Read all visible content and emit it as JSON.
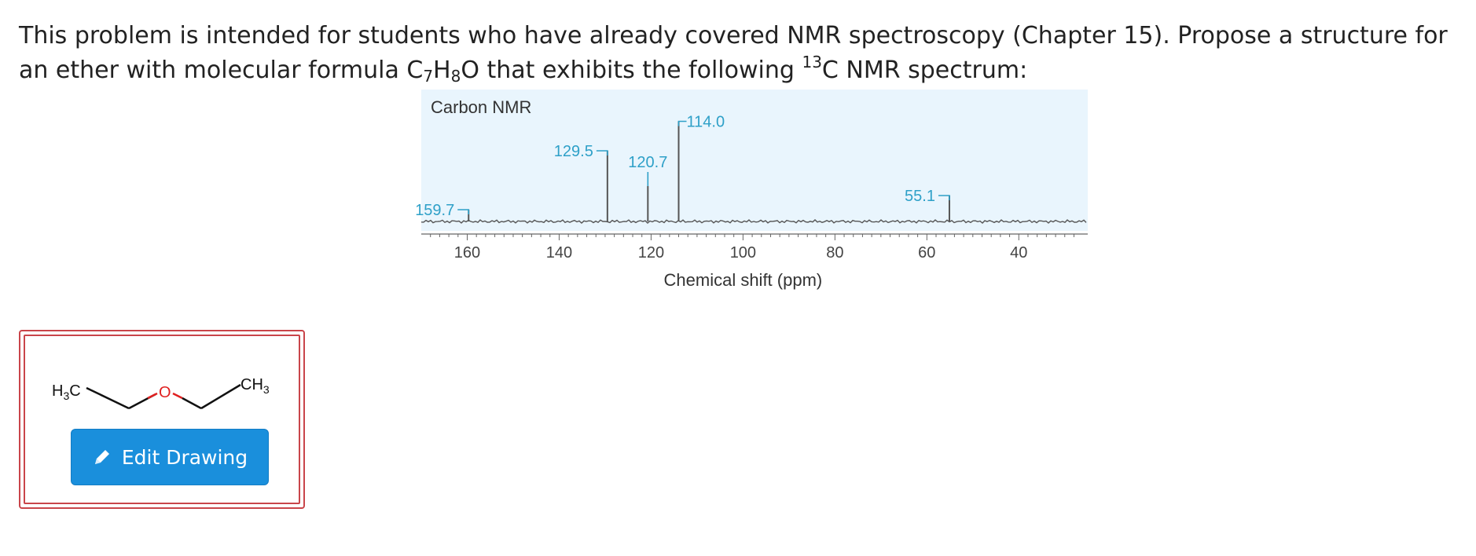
{
  "question": {
    "text_before": "This problem is intended for students who have already covered NMR spectroscopy (Chapter 15). Propose a structure for an ether with molecular formula C",
    "sub_c": "7",
    "h": "H",
    "sub_h": "8",
    "o": "O that exhibits the following ",
    "isotope": "13",
    "text_after": "C NMR spectrum:"
  },
  "chart_data": {
    "type": "spectrum",
    "title": "Carbon NMR",
    "xlabel": "Chemical shift (ppm)",
    "x_range": [
      170,
      25
    ],
    "x_ticks": [
      "160",
      "140",
      "120",
      "100",
      "80",
      "60",
      "40"
    ],
    "peaks": [
      {
        "shift": 159.7,
        "label": "159.7",
        "height": 0.1
      },
      {
        "shift": 129.5,
        "label": "129.5",
        "height": 0.6
      },
      {
        "shift": 120.7,
        "label": "120.7",
        "height": 0.3
      },
      {
        "shift": 114.0,
        "label": "114.0",
        "height": 0.85
      },
      {
        "shift": 55.1,
        "label": "55.1",
        "height": 0.22
      }
    ],
    "colors": {
      "background": "#e9f5fd",
      "label": "#2ea0c8",
      "axis": "#666666",
      "signal": "#555555"
    }
  },
  "answer": {
    "molecule": {
      "left_group_main": "H",
      "left_group_sub": "3",
      "left_group_tail": "C",
      "oxygen": "O",
      "right_group_main": "CH",
      "right_group_sub": "3"
    },
    "edit_button_label": "Edit Drawing",
    "edit_icon": "pencil-icon"
  }
}
